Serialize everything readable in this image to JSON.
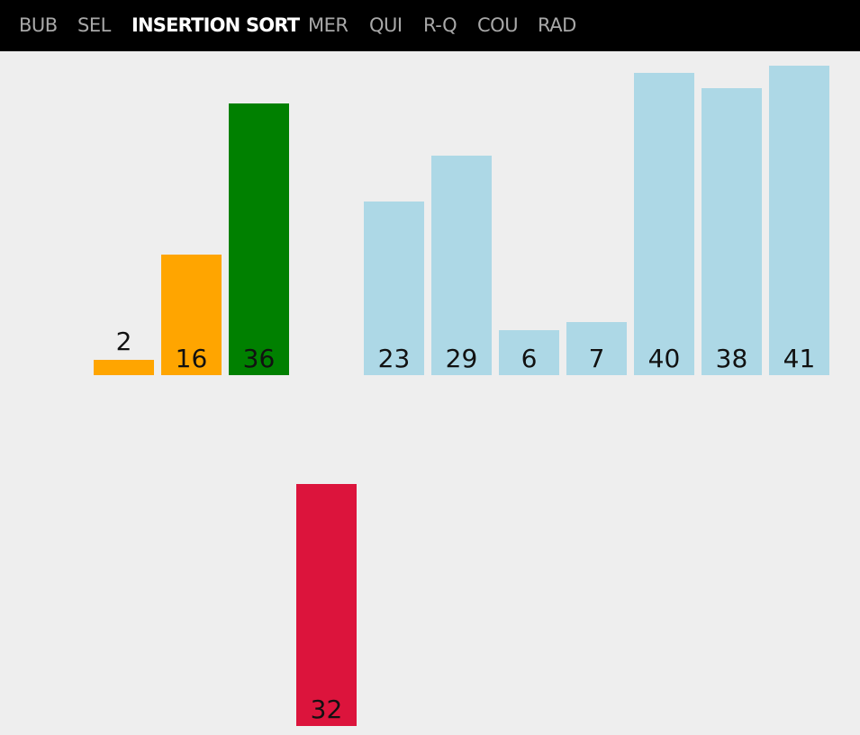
{
  "nav": {
    "items": [
      {
        "id": "bub",
        "label": "BUB",
        "active": false
      },
      {
        "id": "sel",
        "label": "SEL",
        "active": false
      },
      {
        "id": "ins",
        "label": "INSERTION SORT",
        "active": true
      },
      {
        "id": "mer",
        "label": "MER",
        "active": false
      },
      {
        "id": "qui",
        "label": "QUI",
        "active": false
      },
      {
        "id": "rq",
        "label": "R-Q",
        "active": false
      },
      {
        "id": "cou",
        "label": "COU",
        "active": false
      },
      {
        "id": "rad",
        "label": "RAD",
        "active": false
      }
    ]
  },
  "colors": {
    "sorted": "#ffa500",
    "compare": "#008000",
    "key": "#dc143c",
    "unsorted": "#add8e6",
    "empty": "#eeeeee"
  },
  "array": [
    {
      "value": 2,
      "state": "sorted"
    },
    {
      "value": 16,
      "state": "sorted"
    },
    {
      "value": 36,
      "state": "compare"
    },
    {
      "value": null,
      "state": "empty"
    },
    {
      "value": 23,
      "state": "unsorted"
    },
    {
      "value": 29,
      "state": "unsorted"
    },
    {
      "value": 6,
      "state": "unsorted"
    },
    {
      "value": 7,
      "state": "unsorted"
    },
    {
      "value": 40,
      "state": "unsorted"
    },
    {
      "value": 38,
      "state": "unsorted"
    },
    {
      "value": 41,
      "state": "unsorted"
    }
  ],
  "key": {
    "value": 32,
    "state": "key",
    "slot": 3
  }
}
